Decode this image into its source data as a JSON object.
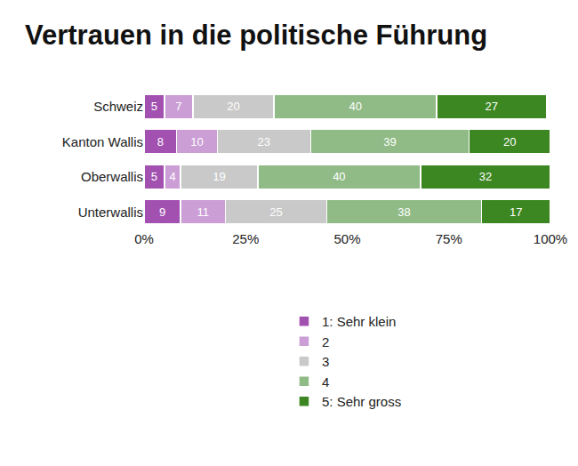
{
  "chart_data": {
    "type": "bar",
    "title": "Vertrauen in die politische Führung",
    "orientation": "horizontal",
    "stacked": true,
    "data_labels": true,
    "grid": false,
    "legend": "bottom",
    "categories": [
      "Schweiz",
      "Kanton Wallis",
      "Oberwallis",
      "Unterwallis"
    ],
    "series": [
      {
        "name": "1: Sehr klein",
        "color": "#a251b1",
        "values": [
          5,
          8,
          5,
          9
        ]
      },
      {
        "name": "2",
        "color": "#cb9ed6",
        "values": [
          7,
          10,
          4,
          11
        ]
      },
      {
        "name": "3",
        "color": "#c9c9c9",
        "values": [
          20,
          23,
          19,
          25
        ]
      },
      {
        "name": "4",
        "color": "#90bb86",
        "values": [
          40,
          39,
          40,
          38
        ]
      },
      {
        "name": "5: Sehr gross",
        "color": "#3c8722",
        "values": [
          27,
          20,
          32,
          17
        ]
      }
    ],
    "xlim": [
      0,
      100
    ],
    "xticks": [
      {
        "value": 0,
        "label": "0%"
      },
      {
        "value": 25,
        "label": "25%"
      },
      {
        "value": 50,
        "label": "50%"
      },
      {
        "value": 75,
        "label": "75%"
      },
      {
        "value": 100,
        "label": "100%"
      }
    ]
  }
}
